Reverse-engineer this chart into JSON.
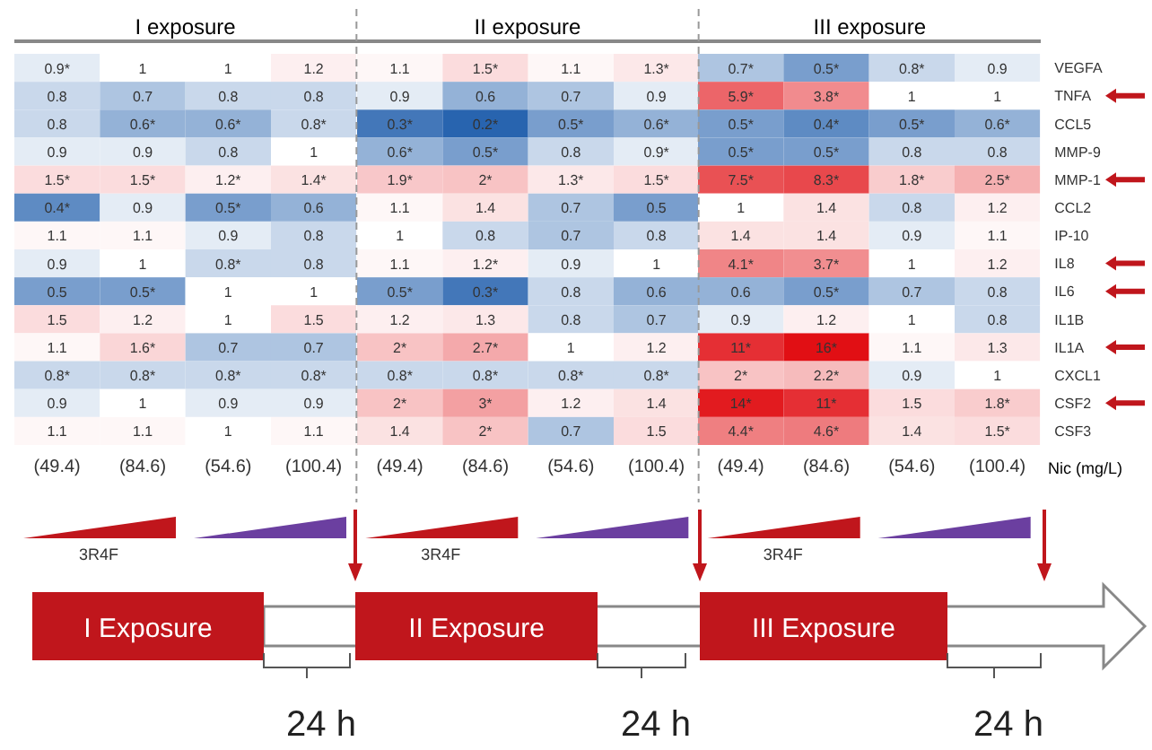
{
  "chart_data": [
    {
      "type": "heatmap",
      "title": "I exposure",
      "categories": [
        "(49.4)",
        "(84.6)",
        "(54.6)",
        "(100.4)"
      ],
      "y_categories": [
        null,
        null,
        null,
        null,
        null,
        null,
        null,
        null,
        null,
        null,
        null,
        null,
        null,
        null
      ],
      "cells": [
        [
          0.9,
          1,
          1,
          1.2
        ],
        [
          0.8,
          0.7,
          0.8,
          0.8
        ],
        [
          0.8,
          0.6,
          0.6,
          0.8
        ],
        [
          0.9,
          0.9,
          0.8,
          1
        ],
        [
          1.5,
          1.5,
          1.2,
          1.4
        ],
        [
          0.4,
          0.9,
          0.5,
          0.6
        ],
        [
          1.1,
          1.1,
          0.9,
          0.8
        ],
        [
          0.9,
          1,
          0.8,
          0.8
        ],
        [
          0.5,
          0.5,
          1,
          1
        ],
        [
          1.5,
          1.2,
          1,
          1.5
        ],
        [
          1.1,
          1.6,
          0.7,
          0.7
        ],
        [
          0.8,
          0.8,
          0.8,
          0.8
        ],
        [
          0.9,
          1,
          0.9,
          0.9
        ],
        [
          1.1,
          1.1,
          1,
          1.1
        ]
      ],
      "cell_labels": [
        [
          "0.9*",
          "1",
          "1",
          "1.2"
        ],
        [
          "0.8",
          "0.7",
          "0.8",
          "0.8"
        ],
        [
          "0.8",
          "0.6*",
          "0.6*",
          "0.8*"
        ],
        [
          "0.9",
          "0.9",
          "0.8",
          "1"
        ],
        [
          "1.5*",
          "1.5*",
          "1.2*",
          "1.4*"
        ],
        [
          "0.4*",
          "0.9",
          "0.5*",
          "0.6"
        ],
        [
          "1.1",
          "1.1",
          "0.9",
          "0.8"
        ],
        [
          "0.9",
          "1",
          "0.8*",
          "0.8"
        ],
        [
          "0.5",
          "0.5*",
          "1",
          "1"
        ],
        [
          "1.5",
          "1.2",
          "1",
          "1.5"
        ],
        [
          "1.1",
          "1.6*",
          "0.7",
          "0.7"
        ],
        [
          "0.8*",
          "0.8*",
          "0.8*",
          "0.8*"
        ],
        [
          "0.9",
          "1",
          "0.9",
          "0.9"
        ],
        [
          "1.1",
          "1.1",
          "1",
          "1.1"
        ]
      ],
      "annotations": [
        "3R4F",
        "I Exposure",
        "24 h"
      ]
    },
    {
      "type": "heatmap",
      "title": "II exposure",
      "categories": [
        "(49.4)",
        "(84.6)",
        "(54.6)",
        "(100.4)"
      ],
      "y_categories": [
        null,
        null,
        null,
        null,
        null,
        null,
        null,
        null,
        null,
        null,
        null,
        null,
        null,
        null
      ],
      "cells": [
        [
          1.1,
          1.5,
          1.1,
          1.3
        ],
        [
          0.9,
          0.6,
          0.7,
          0.9
        ],
        [
          0.3,
          0.2,
          0.5,
          0.6
        ],
        [
          0.6,
          0.5,
          0.8,
          0.9
        ],
        [
          1.9,
          2,
          1.3,
          1.5
        ],
        [
          1.1,
          1.4,
          0.7,
          0.5
        ],
        [
          1,
          0.8,
          0.7,
          0.8
        ],
        [
          1.1,
          1.2,
          0.9,
          1
        ],
        [
          0.5,
          0.3,
          0.8,
          0.6
        ],
        [
          1.2,
          1.3,
          0.8,
          0.7
        ],
        [
          2,
          2.7,
          1,
          1.2
        ],
        [
          0.8,
          0.8,
          0.8,
          0.8
        ],
        [
          2,
          3,
          1.2,
          1.4
        ],
        [
          1.4,
          2,
          0.7,
          1.5
        ]
      ],
      "cell_labels": [
        [
          "1.1",
          "1.5*",
          "1.1",
          "1.3*"
        ],
        [
          "0.9",
          "0.6",
          "0.7",
          "0.9"
        ],
        [
          "0.3*",
          "0.2*",
          "0.5*",
          "0.6*"
        ],
        [
          "0.6*",
          "0.5*",
          "0.8",
          "0.9*"
        ],
        [
          "1.9*",
          "2*",
          "1.3*",
          "1.5*"
        ],
        [
          "1.1",
          "1.4",
          "0.7",
          "0.5"
        ],
        [
          "1",
          "0.8",
          "0.7",
          "0.8"
        ],
        [
          "1.1",
          "1.2*",
          "0.9",
          "1"
        ],
        [
          "0.5*",
          "0.3*",
          "0.8",
          "0.6"
        ],
        [
          "1.2",
          "1.3",
          "0.8",
          "0.7"
        ],
        [
          "2*",
          "2.7*",
          "1",
          "1.2"
        ],
        [
          "0.8*",
          "0.8*",
          "0.8*",
          "0.8*"
        ],
        [
          "2*",
          "3*",
          "1.2",
          "1.4"
        ],
        [
          "1.4",
          "2*",
          "0.7",
          "1.5"
        ]
      ],
      "annotations": [
        "3R4F",
        "II Exposure",
        "24 h"
      ]
    },
    {
      "type": "heatmap",
      "title": "III exposure",
      "xlabel": "Nic (mg/L)",
      "categories": [
        "(49.4)",
        "(84.6)",
        "(54.6)",
        "(100.4)"
      ],
      "y_categories": [
        "VEGFA",
        "TNFA",
        "CCL5",
        "MMP-9",
        "MMP-1",
        "CCL2",
        "IP-10",
        "IL8",
        "IL6",
        "IL1B",
        "IL1A",
        "CXCL1",
        "CSF2",
        "CSF3"
      ],
      "cells": [
        [
          0.7,
          0.5,
          0.8,
          0.9
        ],
        [
          5.9,
          3.8,
          1,
          1
        ],
        [
          0.5,
          0.4,
          0.5,
          0.6
        ],
        [
          0.5,
          0.5,
          0.8,
          0.8
        ],
        [
          7.5,
          8.3,
          1.8,
          2.5
        ],
        [
          1,
          1.4,
          0.8,
          1.2
        ],
        [
          1.4,
          1.4,
          0.9,
          1.1
        ],
        [
          4.1,
          3.7,
          1,
          1.2
        ],
        [
          0.6,
          0.5,
          0.7,
          0.8
        ],
        [
          0.9,
          1.2,
          1,
          0.8
        ],
        [
          11,
          16,
          1.1,
          1.3
        ],
        [
          2,
          2.2,
          0.9,
          1
        ],
        [
          14,
          11,
          1.5,
          1.8
        ],
        [
          4.4,
          4.6,
          1.4,
          1.5
        ]
      ],
      "cell_labels": [
        [
          "0.7*",
          "0.5*",
          "0.8*",
          "0.9"
        ],
        [
          "5.9*",
          "3.8*",
          "1",
          "1"
        ],
        [
          "0.5*",
          "0.4*",
          "0.5*",
          "0.6*"
        ],
        [
          "0.5*",
          "0.5*",
          "0.8",
          "0.8"
        ],
        [
          "7.5*",
          "8.3*",
          "1.8*",
          "2.5*"
        ],
        [
          "1",
          "1.4",
          "0.8",
          "1.2"
        ],
        [
          "1.4",
          "1.4",
          "0.9",
          "1.1"
        ],
        [
          "4.1*",
          "3.7*",
          "1",
          "1.2"
        ],
        [
          "0.6",
          "0.5*",
          "0.7",
          "0.8"
        ],
        [
          "0.9",
          "1.2",
          "1",
          "0.8"
        ],
        [
          "11*",
          "16*",
          "1.1",
          "1.3"
        ],
        [
          "2*",
          "2.2*",
          "0.9",
          "1"
        ],
        [
          "14*",
          "11*",
          "1.5",
          "1.8*"
        ],
        [
          "4.4*",
          "4.6*",
          "1.4",
          "1.5*"
        ]
      ],
      "annotations": [
        "3R4F",
        "III Exposure",
        "24 h"
      ]
    }
  ]
}
